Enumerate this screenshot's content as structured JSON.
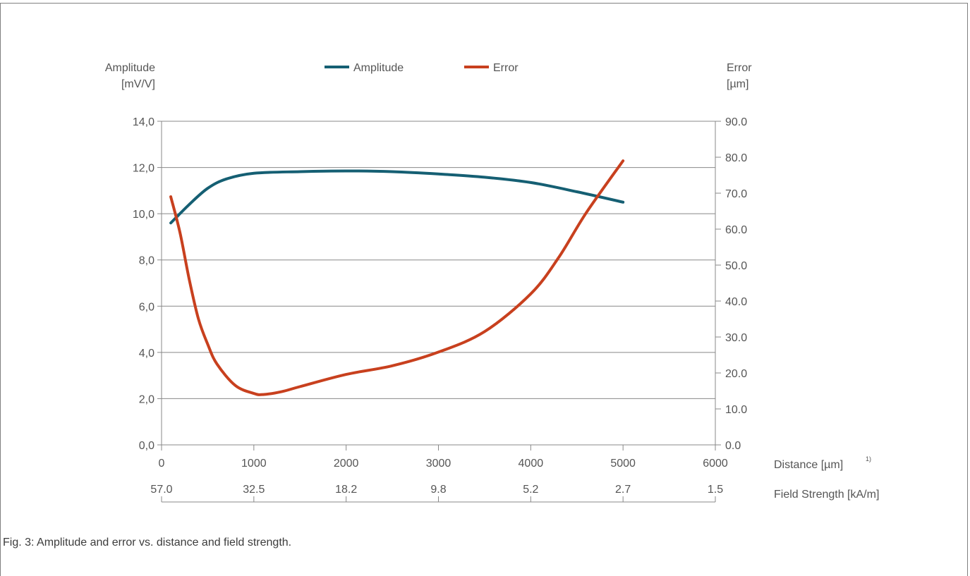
{
  "caption": "Fig. 3: Amplitude and error vs. distance and field strength.",
  "colors": {
    "amplitude": "#155f73",
    "error": "#c8401e",
    "axis": "#888888",
    "grid": "#888888",
    "text": "#555555"
  },
  "chart_data": {
    "type": "line",
    "left_axis": {
      "label_lines": [
        "Amplitude",
        "[mV/V]"
      ],
      "ticks": [
        "0,0",
        "2,0",
        "4,0",
        "6,0",
        "8,0",
        "10,0",
        "12,0",
        "14,0"
      ],
      "ylim": [
        0,
        14
      ],
      "tick_step": 2
    },
    "right_axis": {
      "label_lines": [
        "Error",
        "[µm]"
      ],
      "ticks": [
        "0.0",
        "10.0",
        "20.0",
        "30.0",
        "40.0",
        "50.0",
        "60.0",
        "70.0",
        "80.0",
        "90.0"
      ],
      "ylim": [
        0,
        90
      ],
      "tick_step": 10
    },
    "x_axis": {
      "label": "Distance [µm]",
      "footnote": "1)",
      "ticks": [
        "0",
        "1000",
        "2000",
        "3000",
        "4000",
        "5000",
        "6000"
      ],
      "xlim": [
        0,
        6000
      ],
      "tick_step": 1000
    },
    "x_axis_secondary": {
      "label": "Field Strength [kA/m]",
      "ticks": [
        "57.0",
        "32.5",
        "18.2",
        "9.8",
        "5.2",
        "2.7",
        "1.5"
      ]
    },
    "grid": true,
    "legend": "top-center",
    "series": [
      {
        "name": "Amplitude",
        "axis": "left",
        "x": [
          100,
          300,
          500,
          700,
          1000,
          1500,
          2000,
          2500,
          3000,
          3500,
          4000,
          4500,
          5000
        ],
        "y": [
          9.6,
          10.4,
          11.1,
          11.5,
          11.75,
          11.82,
          11.85,
          11.82,
          11.72,
          11.58,
          11.35,
          10.95,
          10.5
        ]
      },
      {
        "name": "Error",
        "axis": "right",
        "x": [
          100,
          200,
          300,
          400,
          500,
          600,
          800,
          1000,
          1100,
          1300,
          1500,
          2000,
          2500,
          3000,
          3500,
          4000,
          4300,
          4600,
          5000
        ],
        "y": [
          69,
          59,
          46,
          35,
          28,
          22.5,
          16.5,
          14.3,
          14,
          14.8,
          16.2,
          19.6,
          22,
          25.8,
          31.5,
          42,
          52,
          64.5,
          79
        ]
      }
    ]
  }
}
